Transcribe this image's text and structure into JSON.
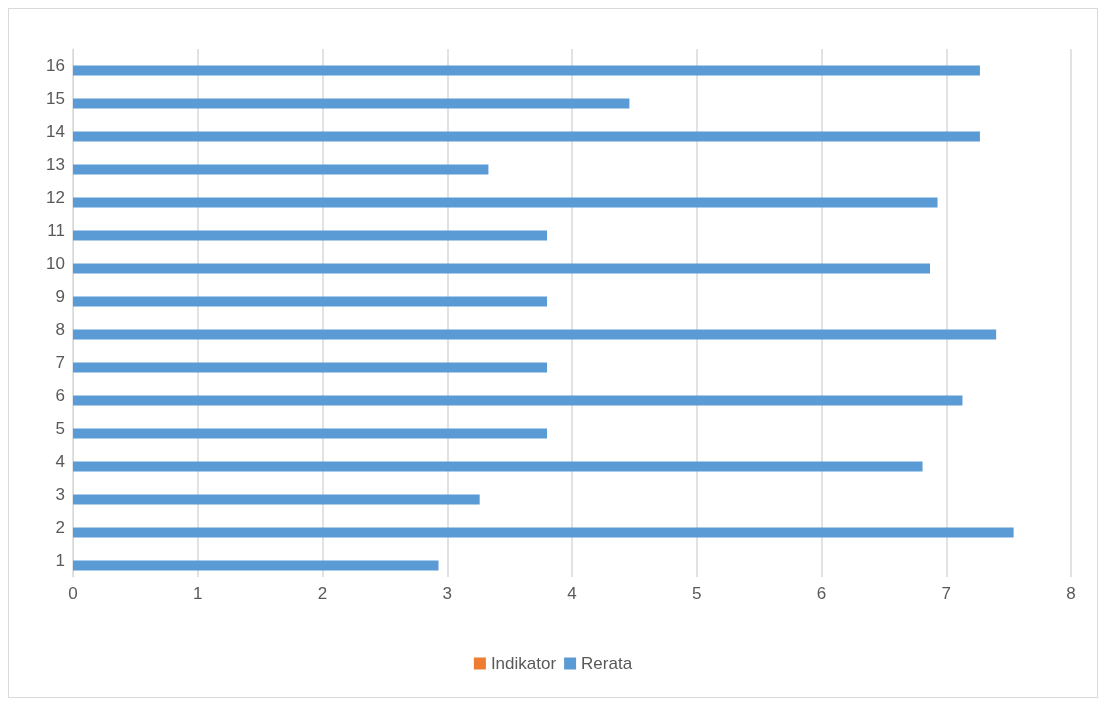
{
  "chart_data": {
    "type": "bar",
    "orientation": "horizontal",
    "categories": [
      "16",
      "15",
      "14",
      "13",
      "12",
      "11",
      "10",
      "9",
      "8",
      "7",
      "6",
      "5",
      "4",
      "3",
      "2",
      "1"
    ],
    "series": [
      {
        "name": "Indikator",
        "color": "#ed7d31",
        "values": [
          null,
          null,
          null,
          null,
          null,
          null,
          null,
          null,
          null,
          null,
          null,
          null,
          null,
          null,
          null,
          null
        ]
      },
      {
        "name": "Rerata",
        "color": "#5b9bd5",
        "values": [
          7.27,
          4.46,
          7.27,
          3.33,
          6.93,
          3.8,
          6.87,
          3.8,
          7.4,
          3.8,
          7.13,
          3.8,
          6.81,
          3.26,
          7.54,
          2.93
        ]
      }
    ],
    "xlim": [
      0,
      8
    ],
    "xticks": [
      0,
      1,
      2,
      3,
      4,
      5,
      6,
      7,
      8
    ],
    "grid": "x",
    "legend": "bottom"
  }
}
